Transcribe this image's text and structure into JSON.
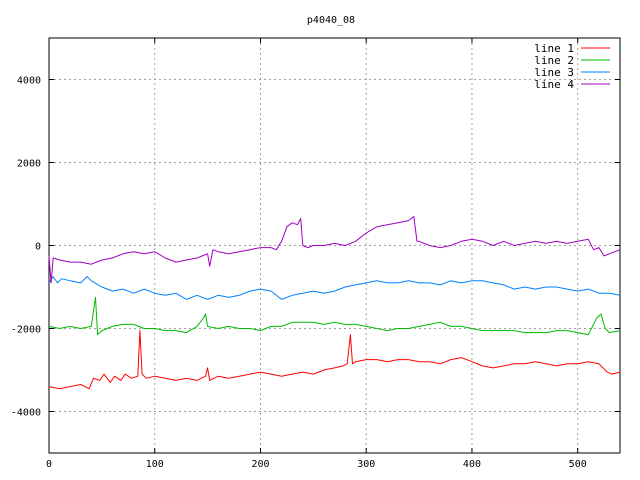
{
  "chart_data": {
    "type": "line",
    "title": "p4040_08",
    "xlabel": "",
    "ylabel": "",
    "xlim": [
      0,
      540
    ],
    "ylim": [
      -5000,
      5000
    ],
    "x_ticks": [
      0,
      100,
      200,
      300,
      400,
      500
    ],
    "y_ticks": [
      -4000,
      -2000,
      0,
      2000,
      4000
    ],
    "grid": true,
    "legend_position": "top-right",
    "series": [
      {
        "name": "line 1",
        "color": "#ff0000",
        "points": [
          [
            0,
            -3400
          ],
          [
            10,
            -3450
          ],
          [
            20,
            -3400
          ],
          [
            30,
            -3350
          ],
          [
            38,
            -3450
          ],
          [
            42,
            -3200
          ],
          [
            48,
            -3250
          ],
          [
            52,
            -3100
          ],
          [
            58,
            -3300
          ],
          [
            62,
            -3150
          ],
          [
            68,
            -3250
          ],
          [
            72,
            -3100
          ],
          [
            78,
            -3200
          ],
          [
            84,
            -3150
          ],
          [
            86,
            -2050
          ],
          [
            88,
            -3100
          ],
          [
            92,
            -3200
          ],
          [
            100,
            -3150
          ],
          [
            110,
            -3200
          ],
          [
            120,
            -3250
          ],
          [
            130,
            -3200
          ],
          [
            140,
            -3250
          ],
          [
            148,
            -3150
          ],
          [
            150,
            -2950
          ],
          [
            152,
            -3250
          ],
          [
            160,
            -3150
          ],
          [
            170,
            -3200
          ],
          [
            180,
            -3150
          ],
          [
            190,
            -3100
          ],
          [
            200,
            -3050
          ],
          [
            210,
            -3100
          ],
          [
            220,
            -3150
          ],
          [
            230,
            -3100
          ],
          [
            240,
            -3050
          ],
          [
            250,
            -3100
          ],
          [
            260,
            -3000
          ],
          [
            270,
            -2950
          ],
          [
            278,
            -2900
          ],
          [
            282,
            -2850
          ],
          [
            285,
            -2150
          ],
          [
            287,
            -2850
          ],
          [
            290,
            -2800
          ],
          [
            300,
            -2750
          ],
          [
            310,
            -2750
          ],
          [
            320,
            -2800
          ],
          [
            330,
            -2750
          ],
          [
            340,
            -2750
          ],
          [
            350,
            -2800
          ],
          [
            360,
            -2800
          ],
          [
            370,
            -2850
          ],
          [
            380,
            -2750
          ],
          [
            390,
            -2700
          ],
          [
            400,
            -2800
          ],
          [
            410,
            -2900
          ],
          [
            420,
            -2950
          ],
          [
            430,
            -2900
          ],
          [
            440,
            -2850
          ],
          [
            450,
            -2850
          ],
          [
            460,
            -2800
          ],
          [
            470,
            -2850
          ],
          [
            480,
            -2900
          ],
          [
            490,
            -2850
          ],
          [
            500,
            -2850
          ],
          [
            510,
            -2800
          ],
          [
            520,
            -2850
          ],
          [
            528,
            -3050
          ],
          [
            532,
            -3100
          ],
          [
            540,
            -3050
          ]
        ]
      },
      {
        "name": "line 2",
        "color": "#00bb00",
        "points": [
          [
            0,
            -1950
          ],
          [
            10,
            -2000
          ],
          [
            20,
            -1950
          ],
          [
            30,
            -2000
          ],
          [
            40,
            -1950
          ],
          [
            44,
            -1250
          ],
          [
            46,
            -2150
          ],
          [
            50,
            -2050
          ],
          [
            60,
            -1950
          ],
          [
            70,
            -1900
          ],
          [
            80,
            -1900
          ],
          [
            90,
            -2000
          ],
          [
            100,
            -2000
          ],
          [
            110,
            -2050
          ],
          [
            120,
            -2050
          ],
          [
            130,
            -2100
          ],
          [
            140,
            -1950
          ],
          [
            146,
            -1750
          ],
          [
            148,
            -1650
          ],
          [
            150,
            -1950
          ],
          [
            160,
            -2000
          ],
          [
            170,
            -1950
          ],
          [
            180,
            -2000
          ],
          [
            190,
            -2000
          ],
          [
            200,
            -2050
          ],
          [
            210,
            -1950
          ],
          [
            220,
            -1950
          ],
          [
            230,
            -1850
          ],
          [
            240,
            -1850
          ],
          [
            250,
            -1850
          ],
          [
            260,
            -1900
          ],
          [
            270,
            -1850
          ],
          [
            280,
            -1900
          ],
          [
            290,
            -1900
          ],
          [
            300,
            -1950
          ],
          [
            310,
            -2000
          ],
          [
            320,
            -2050
          ],
          [
            330,
            -2000
          ],
          [
            340,
            -2000
          ],
          [
            350,
            -1950
          ],
          [
            360,
            -1900
          ],
          [
            370,
            -1850
          ],
          [
            380,
            -1950
          ],
          [
            390,
            -1950
          ],
          [
            400,
            -2000
          ],
          [
            410,
            -2050
          ],
          [
            420,
            -2050
          ],
          [
            430,
            -2050
          ],
          [
            440,
            -2050
          ],
          [
            450,
            -2100
          ],
          [
            460,
            -2100
          ],
          [
            470,
            -2100
          ],
          [
            480,
            -2050
          ],
          [
            490,
            -2050
          ],
          [
            500,
            -2100
          ],
          [
            510,
            -2150
          ],
          [
            518,
            -1750
          ],
          [
            522,
            -1650
          ],
          [
            526,
            -2000
          ],
          [
            530,
            -2100
          ],
          [
            540,
            -2050
          ]
        ]
      },
      {
        "name": "line 3",
        "color": "#0080ff",
        "points": [
          [
            0,
            -900
          ],
          [
            4,
            -750
          ],
          [
            8,
            -900
          ],
          [
            12,
            -800
          ],
          [
            20,
            -850
          ],
          [
            30,
            -900
          ],
          [
            36,
            -750
          ],
          [
            40,
            -850
          ],
          [
            50,
            -1000
          ],
          [
            60,
            -1100
          ],
          [
            70,
            -1050
          ],
          [
            80,
            -1150
          ],
          [
            90,
            -1050
          ],
          [
            100,
            -1150
          ],
          [
            110,
            -1200
          ],
          [
            120,
            -1150
          ],
          [
            130,
            -1300
          ],
          [
            140,
            -1200
          ],
          [
            150,
            -1300
          ],
          [
            160,
            -1200
          ],
          [
            170,
            -1250
          ],
          [
            180,
            -1200
          ],
          [
            190,
            -1100
          ],
          [
            200,
            -1050
          ],
          [
            210,
            -1100
          ],
          [
            220,
            -1300
          ],
          [
            230,
            -1200
          ],
          [
            240,
            -1150
          ],
          [
            250,
            -1100
          ],
          [
            260,
            -1150
          ],
          [
            270,
            -1100
          ],
          [
            280,
            -1000
          ],
          [
            290,
            -950
          ],
          [
            300,
            -900
          ],
          [
            310,
            -850
          ],
          [
            320,
            -900
          ],
          [
            330,
            -900
          ],
          [
            340,
            -850
          ],
          [
            350,
            -900
          ],
          [
            360,
            -900
          ],
          [
            370,
            -950
          ],
          [
            380,
            -850
          ],
          [
            390,
            -900
          ],
          [
            400,
            -850
          ],
          [
            410,
            -850
          ],
          [
            420,
            -900
          ],
          [
            430,
            -950
          ],
          [
            440,
            -1050
          ],
          [
            450,
            -1000
          ],
          [
            460,
            -1050
          ],
          [
            470,
            -1000
          ],
          [
            480,
            -1000
          ],
          [
            490,
            -1050
          ],
          [
            500,
            -1100
          ],
          [
            510,
            -1050
          ],
          [
            520,
            -1150
          ],
          [
            530,
            -1150
          ],
          [
            540,
            -1200
          ]
        ]
      },
      {
        "name": "line 4",
        "color": "#a000c0",
        "points": [
          [
            0,
            -250
          ],
          [
            2,
            -900
          ],
          [
            4,
            -300
          ],
          [
            10,
            -350
          ],
          [
            20,
            -400
          ],
          [
            30,
            -400
          ],
          [
            40,
            -450
          ],
          [
            50,
            -350
          ],
          [
            60,
            -300
          ],
          [
            70,
            -200
          ],
          [
            80,
            -150
          ],
          [
            90,
            -200
          ],
          [
            100,
            -150
          ],
          [
            110,
            -300
          ],
          [
            120,
            -400
          ],
          [
            130,
            -350
          ],
          [
            140,
            -300
          ],
          [
            150,
            -200
          ],
          [
            152,
            -500
          ],
          [
            155,
            -100
          ],
          [
            160,
            -150
          ],
          [
            170,
            -200
          ],
          [
            180,
            -150
          ],
          [
            190,
            -100
          ],
          [
            200,
            -50
          ],
          [
            210,
            -50
          ],
          [
            215,
            -100
          ],
          [
            220,
            100
          ],
          [
            225,
            450
          ],
          [
            230,
            550
          ],
          [
            235,
            500
          ],
          [
            238,
            650
          ],
          [
            240,
            0
          ],
          [
            245,
            -50
          ],
          [
            250,
            0
          ],
          [
            260,
            0
          ],
          [
            270,
            50
          ],
          [
            280,
            0
          ],
          [
            290,
            100
          ],
          [
            300,
            300
          ],
          [
            310,
            450
          ],
          [
            320,
            500
          ],
          [
            330,
            550
          ],
          [
            340,
            600
          ],
          [
            345,
            700
          ],
          [
            348,
            100
          ],
          [
            350,
            100
          ],
          [
            360,
            0
          ],
          [
            370,
            -50
          ],
          [
            380,
            0
          ],
          [
            390,
            100
          ],
          [
            400,
            150
          ],
          [
            410,
            100
          ],
          [
            420,
            0
          ],
          [
            430,
            100
          ],
          [
            440,
            0
          ],
          [
            450,
            50
          ],
          [
            460,
            100
          ],
          [
            470,
            50
          ],
          [
            480,
            100
          ],
          [
            490,
            50
          ],
          [
            500,
            100
          ],
          [
            510,
            150
          ],
          [
            515,
            -100
          ],
          [
            520,
            -50
          ],
          [
            525,
            -250
          ],
          [
            530,
            -200
          ],
          [
            540,
            -100
          ]
        ]
      }
    ]
  }
}
